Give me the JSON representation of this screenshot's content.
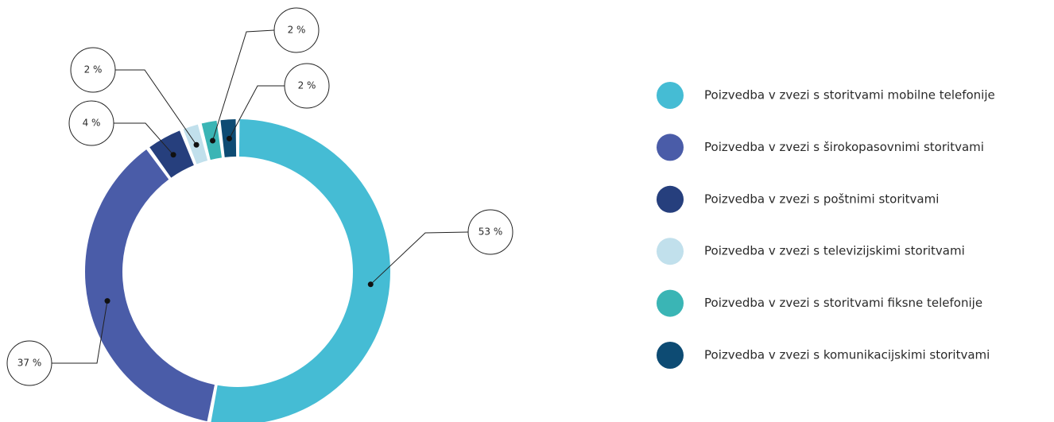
{
  "chart_data": {
    "type": "pie",
    "categories": [
      "Poizvedba v zvezi s storitvami mobilne telefonije",
      "Poizvedba v zvezi s širokopasovnimi storitvami",
      "Poizvedba v zvezi s poštnimi storitvami",
      "Poizvedba v zvezi s televizijskimi storitvami",
      "Poizvedba v zvezi s storitvami fiksne telefonije",
      "Poizvedba v zvezi s komunikacijskimi storitvami"
    ],
    "values": [
      53,
      37,
      4,
      2,
      2,
      2
    ],
    "value_labels": [
      "53 %",
      "37 %",
      "4 %",
      "2 %",
      "2 %",
      "2 %"
    ],
    "colors": [
      "#45bcd4",
      "#4a5ca8",
      "#263f7d",
      "#c1e0ec",
      "#3ab5b5",
      "#0d4b73"
    ]
  }
}
